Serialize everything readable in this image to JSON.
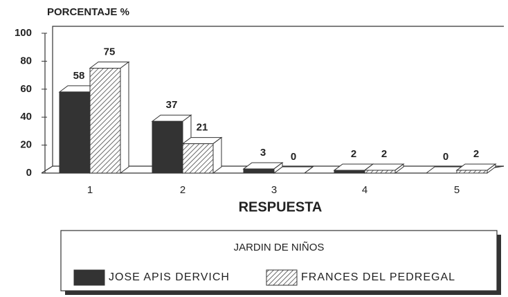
{
  "chart_data": {
    "type": "bar3d",
    "y_axis_label": "PORCENTAJE %",
    "x_axis_label": "RESPUESTA",
    "categories": [
      "1",
      "2",
      "3",
      "4",
      "5"
    ],
    "series": [
      {
        "name": "JOSE APIS DERVICH",
        "color": "#333333",
        "values": [
          58,
          37,
          3,
          2,
          0
        ]
      },
      {
        "name": "FRANCES DEL PEDREGAL",
        "color": "hatch",
        "values": [
          75,
          21,
          0,
          2,
          2
        ]
      }
    ],
    "ylim": [
      0,
      100
    ],
    "yticks": [
      0,
      20,
      40,
      60,
      80,
      100
    ],
    "legend": {
      "title": "JARDIN DE NIÑOS",
      "position": "bottom"
    }
  }
}
